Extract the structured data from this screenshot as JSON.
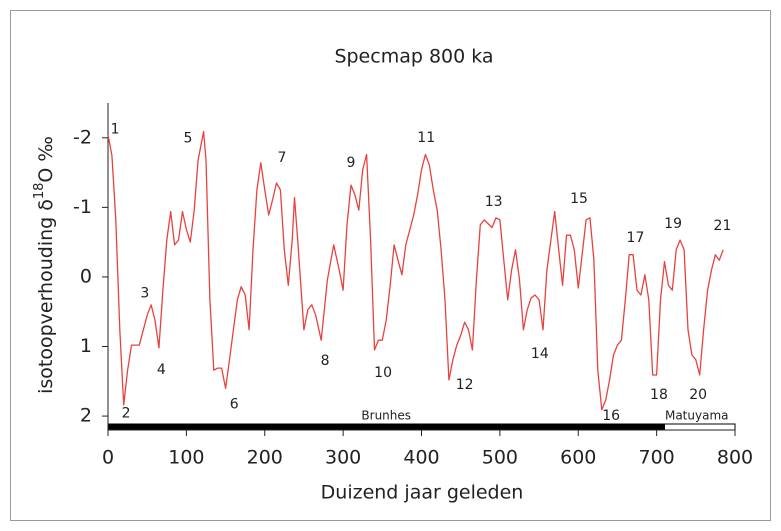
{
  "chart_data": {
    "type": "line",
    "title": "Specmap 800 ka",
    "xlabel": "Duizend jaar geleden",
    "ylabel": "isotoopverhouding δ",
    "ylabel_sup": "18",
    "ylabel_end": "O ‰",
    "xlim": [
      0,
      800
    ],
    "xticks": [
      0,
      100,
      200,
      300,
      400,
      500,
      600,
      700,
      800
    ],
    "ylim": [
      -2.5,
      2.2
    ],
    "yticks": [
      -2,
      -1,
      0,
      1,
      2
    ],
    "y_inverted": true,
    "series": [
      {
        "name": "Specmap",
        "color": "#e8423f",
        "x": [
          0,
          5,
          10,
          15,
          20,
          25,
          30,
          40,
          50,
          55,
          60,
          65,
          70,
          75,
          80,
          85,
          90,
          95,
          100,
          105,
          110,
          115,
          122,
          125,
          130,
          135,
          140,
          145,
          150,
          155,
          160,
          165,
          170,
          175,
          180,
          185,
          190,
          195,
          200,
          205,
          210,
          215,
          220,
          225,
          230,
          235,
          238,
          242,
          250,
          255,
          260,
          265,
          272,
          280,
          288,
          295,
          300,
          305,
          310,
          315,
          320,
          325,
          330,
          335,
          340,
          345,
          350,
          355,
          360,
          365,
          370,
          375,
          380,
          390,
          395,
          400,
          405,
          410,
          415,
          420,
          425,
          430,
          435,
          440,
          445,
          450,
          455,
          460,
          465,
          470,
          475,
          480,
          490,
          495,
          500,
          505,
          510,
          515,
          520,
          525,
          530,
          535,
          540,
          545,
          550,
          555,
          560,
          570,
          575,
          580,
          585,
          590,
          595,
          600,
          610,
          615,
          620,
          625,
          630,
          635,
          640,
          645,
          650,
          655,
          660,
          665,
          670,
          675,
          680,
          685,
          690,
          695,
          700,
          705,
          710,
          715,
          720,
          725,
          730,
          735,
          740,
          745,
          750,
          755,
          760,
          765,
          770,
          775,
          780,
          785
        ],
        "values": [
          -2.04,
          -1.75,
          -0.82,
          0.76,
          1.84,
          1.34,
          0.98,
          0.98,
          0.55,
          0.4,
          0.62,
          1.02,
          0.19,
          -0.53,
          -0.94,
          -0.46,
          -0.53,
          -0.94,
          -0.68,
          -0.5,
          -0.96,
          -1.68,
          -2.09,
          -1.68,
          0.33,
          1.34,
          1.31,
          1.31,
          1.6,
          1.19,
          0.76,
          0.33,
          0.14,
          0.26,
          0.76,
          -0.39,
          -1.25,
          -1.64,
          -1.25,
          -0.89,
          -1.11,
          -1.35,
          -1.25,
          -0.39,
          0.12,
          -0.53,
          -1.14,
          -0.53,
          0.76,
          0.47,
          0.4,
          0.55,
          0.91,
          0.04,
          -0.46,
          -0.1,
          0.19,
          -0.75,
          -1.32,
          -1.18,
          -0.96,
          -1.54,
          -1.76,
          -0.53,
          1.05,
          0.91,
          0.91,
          0.62,
          0.12,
          -0.46,
          -0.24,
          -0.03,
          -0.46,
          -0.89,
          -1.18,
          -1.54,
          -1.76,
          -1.61,
          -1.25,
          -0.96,
          -0.39,
          0.33,
          1.48,
          1.19,
          0.98,
          0.84,
          0.65,
          0.76,
          1.05,
          0.04,
          -0.75,
          -0.82,
          -0.71,
          -0.85,
          -0.82,
          -0.24,
          0.33,
          -0.1,
          -0.39,
          0.04,
          0.76,
          0.47,
          0.3,
          0.26,
          0.33,
          0.76,
          -0.1,
          -0.94,
          -0.39,
          0.12,
          -0.6,
          -0.6,
          -0.39,
          0.16,
          -0.82,
          -0.85,
          -0.24,
          1.34,
          1.91,
          1.77,
          1.48,
          1.12,
          0.98,
          0.91,
          0.33,
          -0.32,
          -0.32,
          0.19,
          0.26,
          -0.03,
          0.33,
          1.41,
          1.41,
          0.33,
          -0.22,
          0.12,
          0.19,
          -0.39,
          -0.53,
          -0.39,
          0.76,
          1.12,
          1.19,
          1.41,
          0.76,
          0.19,
          -0.1,
          -0.32,
          -0.24,
          -0.39
        ]
      }
    ],
    "annotations": [
      {
        "text": "1",
        "x": 9,
        "y": -2.12
      },
      {
        "text": "2",
        "x": 23,
        "y": 1.96
      },
      {
        "text": "3",
        "x": 47,
        "y": 0.24
      },
      {
        "text": "4",
        "x": 68,
        "y": 1.34
      },
      {
        "text": "5",
        "x": 102,
        "y": -1.99
      },
      {
        "text": "6",
        "x": 161,
        "y": 1.83
      },
      {
        "text": "7",
        "x": 222,
        "y": -1.71
      },
      {
        "text": "8",
        "x": 277,
        "y": 1.21
      },
      {
        "text": "9",
        "x": 310,
        "y": -1.64
      },
      {
        "text": "10",
        "x": 351,
        "y": 1.38
      },
      {
        "text": "11",
        "x": 406,
        "y": -2.0
      },
      {
        "text": "12",
        "x": 455,
        "y": 1.55
      },
      {
        "text": "13",
        "x": 492,
        "y": -1.08
      },
      {
        "text": "14",
        "x": 551,
        "y": 1.11
      },
      {
        "text": "15",
        "x": 601,
        "y": -1.12
      },
      {
        "text": "16",
        "x": 642,
        "y": 2.0
      },
      {
        "text": "17",
        "x": 673,
        "y": -0.56
      },
      {
        "text": "18",
        "x": 703,
        "y": 1.7
      },
      {
        "text": "19",
        "x": 721,
        "y": -0.76
      },
      {
        "text": "20",
        "x": 753,
        "y": 1.7
      },
      {
        "text": "21",
        "x": 784,
        "y": -0.73
      }
    ],
    "chrons": [
      {
        "name": "Brunhes",
        "start": 0,
        "end": 710,
        "color": "#000000"
      },
      {
        "name": "Matuyama",
        "start": 710,
        "end": 800,
        "color": "#ffffff"
      }
    ]
  }
}
